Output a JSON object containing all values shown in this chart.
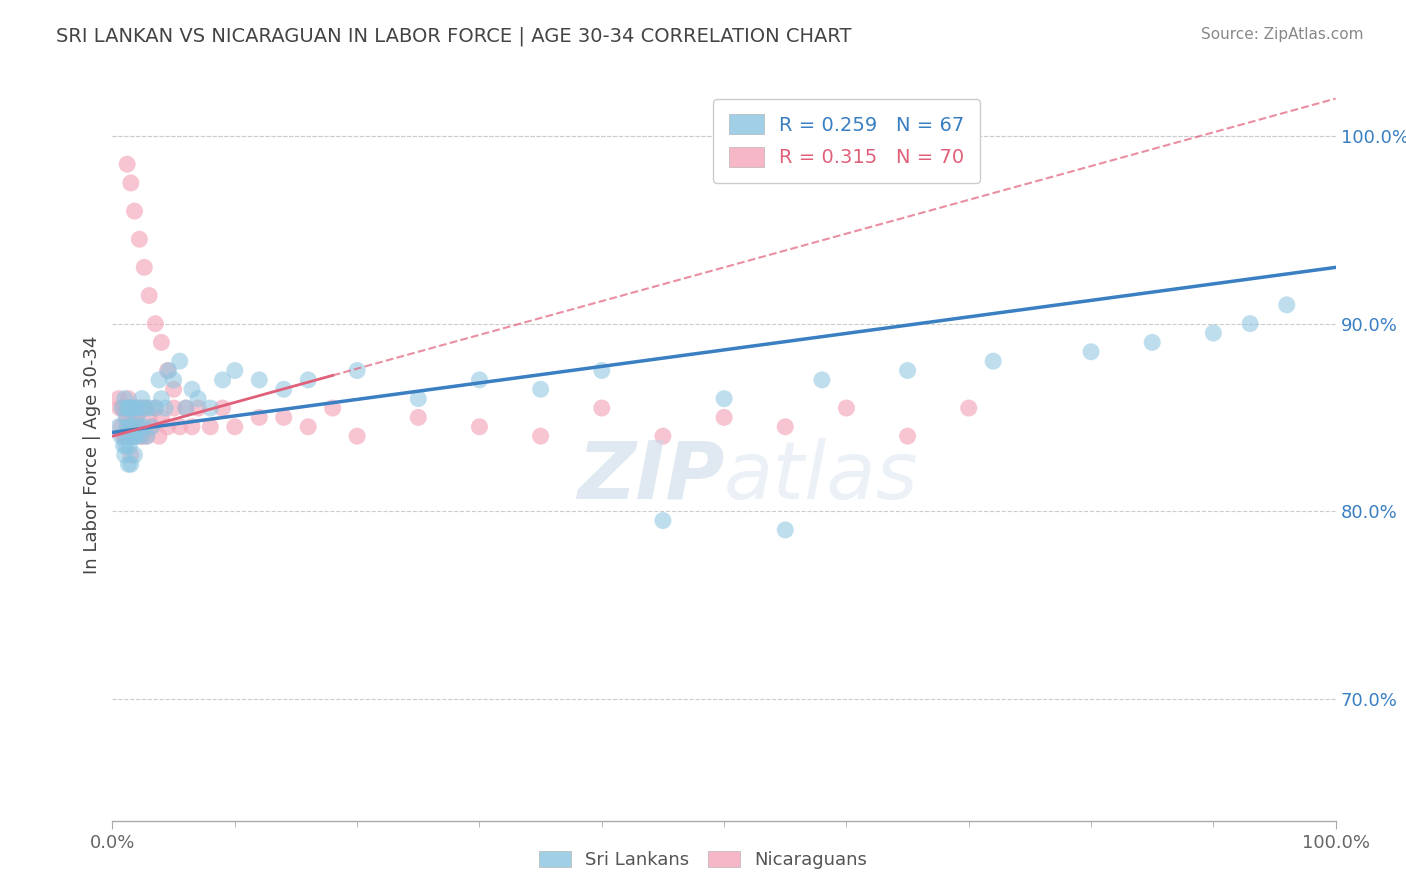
{
  "title": "SRI LANKAN VS NICARAGUAN IN LABOR FORCE | AGE 30-34 CORRELATION CHART",
  "source": "Source: ZipAtlas.com",
  "ylabel": "In Labor Force | Age 30-34",
  "xlim": [
    0.0,
    1.0
  ],
  "ylim": [
    0.635,
    1.025
  ],
  "yticks": [
    0.7,
    0.8,
    0.9,
    1.0
  ],
  "ytick_labels": [
    "70.0%",
    "80.0%",
    "90.0%",
    "100.0%"
  ],
  "xticks": [
    0.0,
    1.0
  ],
  "xtick_labels": [
    "0.0%",
    "100.0%"
  ],
  "sri_R": "0.259",
  "sri_N": "67",
  "nic_R": "0.315",
  "nic_N": "70",
  "blue_color": "#89c4e1",
  "pink_color": "#f4a7b9",
  "blue_line_color": "#3a7fc1",
  "pink_line_color": "#e0607a",
  "blue_text_color": "#3a7fc1",
  "pink_text_color": "#e0607a",
  "title_color": "#444444",
  "source_color": "#888888",
  "watermark_zip": "ZIP",
  "watermark_atlas": "atlas",
  "blue_line_start_y": 0.842,
  "blue_line_end_y": 0.93,
  "pink_line_start_y": 0.84,
  "pink_line_end_y": 1.02,
  "sri_x": [
    0.005,
    0.007,
    0.008,
    0.009,
    0.01,
    0.01,
    0.011,
    0.011,
    0.012,
    0.012,
    0.013,
    0.013,
    0.013,
    0.014,
    0.014,
    0.015,
    0.015,
    0.016,
    0.016,
    0.017,
    0.017,
    0.018,
    0.018,
    0.019,
    0.019,
    0.02,
    0.021,
    0.022,
    0.023,
    0.024,
    0.025,
    0.027,
    0.028,
    0.03,
    0.032,
    0.035,
    0.038,
    0.04,
    0.043,
    0.046,
    0.05,
    0.055,
    0.06,
    0.065,
    0.07,
    0.08,
    0.09,
    0.1,
    0.12,
    0.14,
    0.16,
    0.2,
    0.25,
    0.3,
    0.35,
    0.4,
    0.5,
    0.58,
    0.65,
    0.72,
    0.8,
    0.85,
    0.9,
    0.93,
    0.96,
    0.55,
    0.45
  ],
  "sri_y": [
    0.845,
    0.84,
    0.855,
    0.835,
    0.86,
    0.83,
    0.85,
    0.835,
    0.845,
    0.855,
    0.84,
    0.855,
    0.825,
    0.845,
    0.835,
    0.855,
    0.825,
    0.845,
    0.855,
    0.84,
    0.855,
    0.84,
    0.83,
    0.855,
    0.84,
    0.85,
    0.845,
    0.855,
    0.84,
    0.86,
    0.845,
    0.855,
    0.84,
    0.855,
    0.845,
    0.855,
    0.87,
    0.86,
    0.855,
    0.875,
    0.87,
    0.88,
    0.855,
    0.865,
    0.86,
    0.855,
    0.87,
    0.875,
    0.87,
    0.865,
    0.87,
    0.875,
    0.86,
    0.87,
    0.865,
    0.875,
    0.86,
    0.87,
    0.875,
    0.88,
    0.885,
    0.89,
    0.895,
    0.9,
    0.91,
    0.79,
    0.795
  ],
  "nic_x": [
    0.005,
    0.006,
    0.007,
    0.008,
    0.009,
    0.01,
    0.01,
    0.011,
    0.011,
    0.012,
    0.012,
    0.013,
    0.013,
    0.014,
    0.014,
    0.015,
    0.015,
    0.016,
    0.017,
    0.017,
    0.018,
    0.018,
    0.019,
    0.02,
    0.021,
    0.022,
    0.023,
    0.024,
    0.025,
    0.027,
    0.028,
    0.03,
    0.032,
    0.035,
    0.038,
    0.04,
    0.045,
    0.05,
    0.055,
    0.06,
    0.065,
    0.07,
    0.08,
    0.09,
    0.1,
    0.12,
    0.14,
    0.16,
    0.18,
    0.2,
    0.25,
    0.3,
    0.35,
    0.4,
    0.45,
    0.5,
    0.55,
    0.6,
    0.65,
    0.7,
    0.012,
    0.015,
    0.018,
    0.022,
    0.026,
    0.03,
    0.035,
    0.04,
    0.045,
    0.05
  ],
  "nic_y": [
    0.86,
    0.855,
    0.845,
    0.855,
    0.84,
    0.855,
    0.84,
    0.855,
    0.84,
    0.845,
    0.85,
    0.845,
    0.86,
    0.85,
    0.84,
    0.855,
    0.83,
    0.845,
    0.855,
    0.84,
    0.85,
    0.84,
    0.845,
    0.85,
    0.845,
    0.855,
    0.84,
    0.855,
    0.84,
    0.855,
    0.84,
    0.85,
    0.845,
    0.855,
    0.84,
    0.85,
    0.845,
    0.855,
    0.845,
    0.855,
    0.845,
    0.855,
    0.845,
    0.855,
    0.845,
    0.85,
    0.85,
    0.845,
    0.855,
    0.84,
    0.85,
    0.845,
    0.84,
    0.855,
    0.84,
    0.85,
    0.845,
    0.855,
    0.84,
    0.855,
    0.985,
    0.975,
    0.96,
    0.945,
    0.93,
    0.915,
    0.9,
    0.89,
    0.875,
    0.865
  ]
}
